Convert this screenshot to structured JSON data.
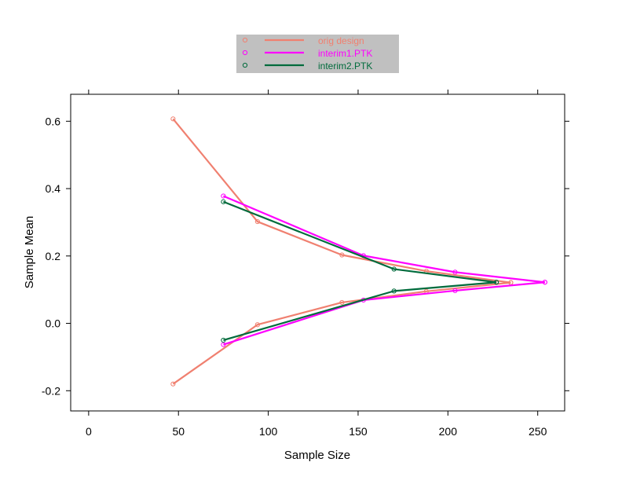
{
  "colors": {
    "background": "#ffffff",
    "legend_bg": "#c0c0c0"
  },
  "chart_data": {
    "type": "line",
    "title": "",
    "xlabel": "Sample Size",
    "ylabel": "Sample Mean",
    "xlim": [
      -10,
      265
    ],
    "ylim": [
      -0.26,
      0.68
    ],
    "grid": false,
    "legend_position": "top-center",
    "x_ticks": [
      0,
      50,
      100,
      150,
      200,
      250
    ],
    "x_tick_labels": [
      "0",
      "50",
      "100",
      "150",
      "200",
      "250"
    ],
    "y_ticks": [
      -0.2,
      0.0,
      0.2,
      0.4,
      0.6
    ],
    "y_tick_labels": [
      "-0.2",
      "0.0",
      "0.2",
      "0.4",
      "0.6"
    ],
    "series": [
      {
        "name": "orig design",
        "color": "#f08070",
        "upper": {
          "x": [
            47,
            94,
            141,
            188,
            235
          ],
          "y": [
            0.607,
            0.302,
            0.203,
            0.155,
            0.121
          ]
        },
        "lower": {
          "x": [
            47,
            94,
            141,
            188,
            235
          ],
          "y": [
            -0.18,
            -0.004,
            0.062,
            0.095,
            0.121
          ]
        }
      },
      {
        "name": "interim1.PTK",
        "color": "#ff00ff",
        "upper": {
          "x": [
            75,
            153,
            204,
            254
          ],
          "y": [
            0.378,
            0.201,
            0.152,
            0.122
          ]
        },
        "lower": {
          "x": [
            75,
            153,
            204,
            254
          ],
          "y": [
            -0.063,
            0.069,
            0.097,
            0.122
          ]
        }
      },
      {
        "name": "interim2.PTK",
        "color": "#006b3c",
        "upper": {
          "x": [
            75,
            170,
            227
          ],
          "y": [
            0.361,
            0.161,
            0.122
          ]
        },
        "lower": {
          "x": [
            75,
            170,
            227
          ],
          "y": [
            -0.05,
            0.096,
            0.122
          ]
        }
      }
    ]
  }
}
